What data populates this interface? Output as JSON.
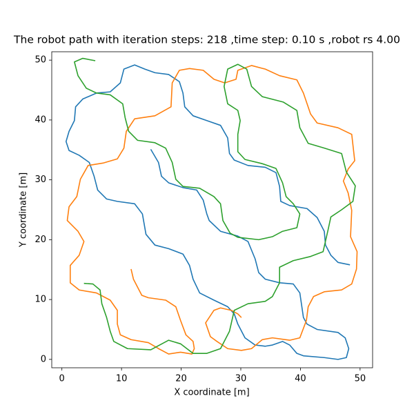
{
  "chart_data": {
    "type": "line",
    "title": "The robot path with iteration steps: 218 ,time step: 0.10 s ,robot rs 4.00",
    "xlabel": "X coordinate [m]",
    "ylabel": "Y coordinate [m]",
    "xlim": [
      -1.7,
      52.1
    ],
    "ylim": [
      -1.4,
      51.4
    ],
    "xticks": [
      0,
      10,
      20,
      30,
      40,
      50
    ],
    "yticks": [
      0,
      10,
      20,
      30,
      40,
      50
    ],
    "series": [
      {
        "color": "#1f77b4",
        "x": [
          14.9,
          16.2,
          16.7,
          17.9,
          20.3,
          22.6,
          23.7,
          24.3,
          24.7,
          26.6,
          29.5,
          31.2,
          32.4,
          33,
          34.1,
          36.5,
          38.8,
          39.9,
          40.5,
          41.1,
          42.8,
          46.3,
          47.5,
          48.1,
          47.7,
          46.3,
          44,
          40.5,
          39.4,
          38.2,
          37,
          35.3,
          34.1,
          32.4,
          30.7,
          29.5,
          28.9,
          27.8,
          25.5,
          23.1,
          22,
          21.4,
          20.3,
          17.9,
          15.6,
          14.1,
          13.5,
          12.2,
          9.3,
          7.5,
          6.0,
          5.4,
          4.6,
          2.9,
          1.2,
          0.7,
          1.2,
          2.1,
          2.3,
          3.5,
          5.8,
          8.1,
          9.8,
          10.4,
          12.2,
          13.9,
          15.6,
          17.9,
          19.7,
          20.3,
          20.6,
          22,
          24.3,
          26.6,
          27.8,
          28.1,
          28.9,
          31.2,
          34.1,
          35.9,
          36.5,
          36.7,
          38.2,
          41.1,
          42.8,
          44,
          44.2,
          45.1,
          46.3,
          48.3
        ],
        "values": [
          35.1,
          32.9,
          30.6,
          29.5,
          28.7,
          28.3,
          26.6,
          24.3,
          23.2,
          21.4,
          20.6,
          19.7,
          16.8,
          14.5,
          13.4,
          12.8,
          12.6,
          11.1,
          7.0,
          5.9,
          5.0,
          4.5,
          3.6,
          1.8,
          0.3,
          0,
          0.3,
          0.6,
          1.0,
          2.4,
          3,
          2.4,
          2.2,
          2.4,
          3.6,
          5.9,
          7.6,
          8.8,
          9.9,
          11.1,
          13.4,
          15.7,
          17.6,
          18.5,
          19.1,
          20.9,
          24.3,
          26.0,
          26.4,
          26.8,
          28.3,
          30.6,
          32.9,
          34.1,
          34.9,
          36.4,
          38.1,
          39.9,
          42.2,
          43.5,
          44.5,
          44.7,
          46.2,
          48.5,
          49.2,
          48.5,
          47.9,
          47.6,
          46.4,
          44.5,
          42.2,
          40.7,
          39.9,
          39.1,
          37.0,
          34.4,
          33.3,
          32.4,
          32.1,
          31.2,
          28.9,
          26.4,
          25.7,
          25.2,
          23.7,
          21.4,
          19.1,
          17.4,
          16.2,
          15.8
        ]
      },
      {
        "color": "#ff7f0e",
        "x": [
          11.6,
          12,
          13.4,
          14.5,
          17.4,
          19.1,
          19.9,
          20.8,
          22,
          22.2,
          21.8,
          19.9,
          17.9,
          16.2,
          14.5,
          11.6,
          9.8,
          9.3,
          9.3,
          8.1,
          5.8,
          2.9,
          1.4,
          1.4,
          2.9,
          3.7,
          2.7,
          0.9,
          1.2,
          2.5,
          3.1,
          4.4,
          6.9,
          9.3,
          10.4,
          10.8,
          12.2,
          15.6,
          18.3,
          18.5,
          19.7,
          21.4,
          23.7,
          25.5,
          27.3,
          29.2,
          29.5,
          31.8,
          34.1,
          36.5,
          39.4,
          40.5,
          41.7,
          42.8,
          46.3,
          48.6,
          49.1,
          48.0,
          47.2,
          48.0,
          48.6,
          48.4,
          49.5,
          49.4,
          48.6,
          46.9,
          44.0,
          42.2,
          41.3,
          41.0,
          39.9,
          38.2,
          35.3,
          33.6,
          31.8,
          30.1,
          27.8,
          26,
          24.9,
          24.1,
          25.5,
          26.6,
          28.4,
          29.5,
          30.1
        ],
        "values": [
          15.1,
          13.4,
          10.7,
          10.3,
          9.9,
          8.8,
          6.5,
          4.1,
          3,
          1.8,
          0.9,
          1.2,
          0.9,
          1.8,
          2.8,
          3.3,
          4.1,
          5.9,
          8.2,
          9.9,
          11.1,
          11.6,
          12.8,
          15.7,
          17.4,
          19.7,
          21.4,
          23.2,
          25.5,
          27.2,
          30.1,
          32.4,
          32.8,
          33.5,
          35.3,
          38.1,
          40.2,
          40.7,
          42.2,
          46.2,
          48.3,
          48.6,
          48.3,
          46.8,
          46.2,
          46.8,
          48.3,
          49.1,
          48.5,
          47.4,
          46.7,
          44.5,
          41.0,
          39.5,
          38.7,
          37.6,
          33.2,
          31.8,
          29.8,
          27.8,
          24.9,
          20.5,
          18.0,
          15.1,
          12.6,
          11.6,
          11.3,
          10.5,
          8.8,
          6.5,
          3.6,
          3.2,
          3.6,
          3.3,
          1.8,
          1.5,
          1.8,
          3,
          3.8,
          6.1,
          8.2,
          8.6,
          8.2,
          7.6,
          7.0
        ]
      },
      {
        "color": "#2ca02c",
        "x": [
          5.6,
          3.5,
          2.1,
          2.7,
          4.1,
          5.8,
          8.1,
          10.2,
          10.6,
          11.2,
          12.7,
          15.6,
          17.4,
          18.5,
          19.1,
          20.3,
          23.1,
          25.5,
          26.6,
          27,
          28.2,
          29.5,
          33,
          35.3,
          37,
          39.4,
          39.9,
          38.8,
          37.6,
          37,
          35.9,
          33.6,
          30.7,
          29.5,
          29.5,
          29.9,
          29.5,
          27.8,
          27.2,
          27.8,
          29.5,
          31,
          31.8,
          33.6,
          37.1,
          39.4,
          39.9,
          41.3,
          44,
          46.9,
          47.7,
          49.2,
          48.8,
          46.9,
          45.1,
          44.6,
          43.8,
          41.7,
          38.8,
          36.5,
          36.5,
          35.3,
          34.1,
          31.2,
          28.9,
          28.1,
          26.6,
          24.3,
          22,
          19.9,
          17.9,
          14.9,
          11,
          8.7,
          8.1,
          7.5,
          6.7,
          6.4,
          5.2,
          3.7
        ],
        "values": [
          49.9,
          50.3,
          49.7,
          47.4,
          45.3,
          44.5,
          44.2,
          42.7,
          40.4,
          38.1,
          36.6,
          36.2,
          35.3,
          32.9,
          30.1,
          28.9,
          28.6,
          27.2,
          26.0,
          23.2,
          21.1,
          20.4,
          20.0,
          20.5,
          21.4,
          22.0,
          24.3,
          26.0,
          27.2,
          29.5,
          31.9,
          32.7,
          33.4,
          34.7,
          37.6,
          39.9,
          41.6,
          42.7,
          45.6,
          48.5,
          49.3,
          48.5,
          45.6,
          43.9,
          43.0,
          41.6,
          38.7,
          36.1,
          35.3,
          34.4,
          31.3,
          29.0,
          26.4,
          25.0,
          23.8,
          21.5,
          18.0,
          17.2,
          16.5,
          15.4,
          12.8,
          10.5,
          9.7,
          9.3,
          8.2,
          4.7,
          1.8,
          1.0,
          1.0,
          2.6,
          3.2,
          1.6,
          1.8,
          3,
          4.7,
          7.0,
          9.3,
          11.6,
          12.6,
          12.7
        ]
      }
    ]
  }
}
